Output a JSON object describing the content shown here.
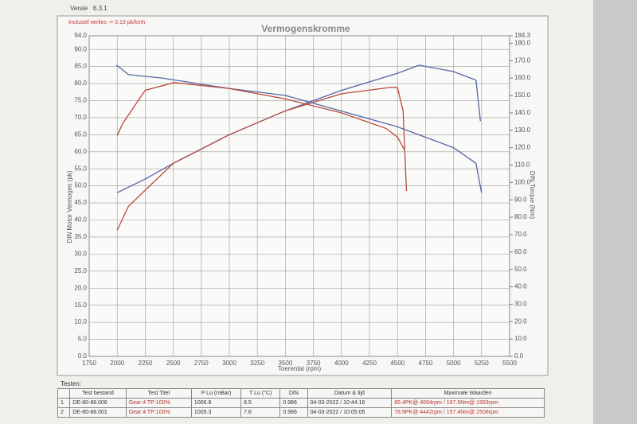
{
  "header": {
    "version_label": "Versie",
    "version": "6.3.1"
  },
  "chart_data": {
    "type": "line",
    "title": "Vermogenskromme",
    "annotation": "Inclusief verlies -> 0.13 pk/kmh",
    "x_label": "Toerental (rpm)",
    "y_label": "DIN Motor Vermogen (pk)",
    "y2_label": "DIN Torque (Nm)",
    "xlim": [
      1750,
      5500
    ],
    "xticks": [
      1750,
      2000,
      2250,
      2500,
      2750,
      3000,
      3250,
      3500,
      3750,
      4000,
      4250,
      4500,
      4750,
      5000,
      5250,
      5500
    ],
    "ylim": [
      0,
      94
    ],
    "yticks": [
      {
        "value": 0,
        "label": "0.0"
      },
      {
        "value": 5,
        "label": "5.0"
      },
      {
        "value": 10,
        "label": "10.0"
      },
      {
        "value": 15,
        "label": "15.0"
      },
      {
        "value": 20,
        "label": "20.0"
      },
      {
        "value": 25,
        "label": "25.0"
      },
      {
        "value": 30,
        "label": "30.0"
      },
      {
        "value": 35,
        "label": "35.0"
      },
      {
        "value": 40,
        "label": "40.0"
      },
      {
        "value": 45,
        "label": "45.0"
      },
      {
        "value": 50,
        "label": "50.0"
      },
      {
        "value": 55,
        "label": "55.0"
      },
      {
        "value": 60,
        "label": "60.0"
      },
      {
        "value": 65,
        "label": "65.0"
      },
      {
        "value": 70,
        "label": "70.0"
      },
      {
        "value": 75,
        "label": "75.0"
      },
      {
        "value": 80,
        "label": "80.0"
      },
      {
        "value": 85,
        "label": "85.0"
      },
      {
        "value": 90,
        "label": "90.0"
      },
      {
        "value": 94,
        "label": "94.0"
      }
    ],
    "y2lim": [
      0,
      184.3
    ],
    "y2ticks": [
      {
        "value": 0,
        "label": "0.0"
      },
      {
        "value": 10,
        "label": "10.0"
      },
      {
        "value": 20,
        "label": "20.0"
      },
      {
        "value": 30,
        "label": "30.0"
      },
      {
        "value": 40,
        "label": "40.0"
      },
      {
        "value": 50,
        "label": "50.0"
      },
      {
        "value": 60,
        "label": "60.0"
      },
      {
        "value": 70,
        "label": "70.0"
      },
      {
        "value": 80,
        "label": "80.0"
      },
      {
        "value": 90,
        "label": "90.0"
      },
      {
        "value": 100,
        "label": "100.0"
      },
      {
        "value": 110,
        "label": "110.0"
      },
      {
        "value": 120,
        "label": "120.0"
      },
      {
        "value": 130,
        "label": "130.0"
      },
      {
        "value": 140,
        "label": "140.0"
      },
      {
        "value": 150,
        "label": "150.0"
      },
      {
        "value": 160,
        "label": "160.0"
      },
      {
        "value": 170,
        "label": "170.0"
      },
      {
        "value": 180,
        "label": "180.0"
      },
      {
        "value": 184.3,
        "label": "184.3"
      }
    ],
    "grid": true,
    "series": [
      {
        "color": "#5566a6",
        "x": [
          2000,
          2250,
          2500,
          3000,
          3500,
          4000,
          4500,
          4694,
          5000,
          5200,
          5240
        ],
        "values": [
          48,
          52,
          56.6,
          65,
          72,
          78,
          83,
          85.4,
          83.5,
          81,
          69
        ]
      },
      {
        "color": "#b8493b",
        "x": [
          2000,
          2100,
          2500,
          3000,
          3500,
          4000,
          4442,
          4500,
          4550,
          4580
        ],
        "values": [
          37,
          44,
          56.6,
          65,
          72,
          77,
          78.9,
          78.8,
          72,
          48.5
        ]
      },
      {
        "color": "#5566a6",
        "axis": "y2",
        "x": [
          1993,
          2100,
          2400,
          3000,
          3500,
          4000,
          4500,
          5000,
          5200,
          5250
        ],
        "values": [
          167.5,
          162,
          160,
          154,
          150,
          141,
          132,
          120,
          111,
          94
        ]
      },
      {
        "color": "#b8493b",
        "axis": "y2",
        "x": [
          2000,
          2050,
          2250,
          2508,
          3000,
          3500,
          4000,
          4400,
          4500,
          4560
        ],
        "values": [
          127,
          134,
          153,
          157.4,
          154,
          148,
          140,
          131,
          126,
          119
        ]
      }
    ]
  },
  "table": {
    "caption": "Testen:",
    "columns": [
      "",
      "Test bestand",
      "Test Titel",
      "P Lu (mBar)",
      "T Lu (°C)",
      "DIN",
      "Datum & tijd",
      "Maximale Waarden"
    ],
    "rows": [
      [
        "1",
        "DE-80-88.006",
        "Gear:4 TP:100%",
        "1006.8",
        "8.5",
        "0.986",
        "04-03-2022 / 10:44:16",
        "85.4PK@ 4694rpm / 167.5Nm@ 1993rpm"
      ],
      [
        "2",
        "DE-80-88.001",
        "Gear:4 TP:100%",
        "1005.3",
        "7.8",
        "0.986",
        "04-03-2022 / 10:05:05",
        "78.9PK@ 4442rpm / 157.4Nm@ 2508rpm"
      ]
    ]
  }
}
